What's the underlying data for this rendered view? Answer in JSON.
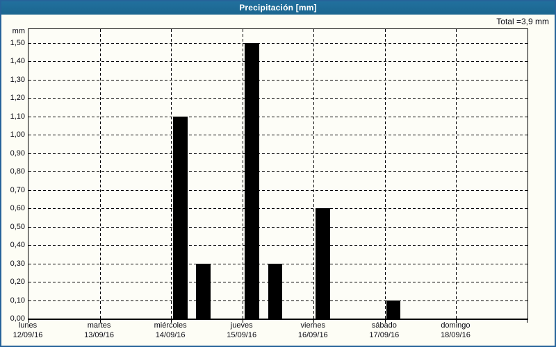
{
  "window": {
    "title": "Precipitación [mm]"
  },
  "header": {
    "total_text": "Total =3,9 mm"
  },
  "colors": {
    "titlebar_bg": "#1d6b9e",
    "titlebar_text": "#ffffff",
    "panel_border": "#26639a",
    "background": "#fdfdf5",
    "bar": "#000000",
    "grid": "#000000",
    "axis": "#000000",
    "label_text": "#0a0a12"
  },
  "chart_data": {
    "type": "bar",
    "title": "Precipitación [mm]",
    "ylabel": "mm",
    "ylim": [
      0,
      1.5
    ],
    "ytick_step": 0.1,
    "ytick_labels": [
      "0,00",
      "0,10",
      "0,20",
      "0,30",
      "0,40",
      "0,50",
      "0,60",
      "0,70",
      "0,80",
      "0,90",
      "1,00",
      "1,10",
      "1,20",
      "1,30",
      "1,40",
      "1,50"
    ],
    "grid": "dashed-black; horizontal every 0,10 mm; vertical at each day boundary",
    "legend": "none",
    "days": [
      {
        "name": "lunes",
        "date": "12/09/16"
      },
      {
        "name": "martes",
        "date": "13/09/16"
      },
      {
        "name": "miércoles",
        "date": "14/09/16"
      },
      {
        "name": "jueves",
        "date": "15/09/16"
      },
      {
        "name": "viernes",
        "date": "16/09/16"
      },
      {
        "name": "sábado",
        "date": "17/09/16"
      },
      {
        "name": "domingo",
        "date": "18/09/16"
      }
    ],
    "bars": [
      {
        "day": "miércoles",
        "date": "14/09/16",
        "value": 1.1,
        "day_index": 2,
        "time_offset_frac": 0.03,
        "width_frac": 0.2
      },
      {
        "day": "miércoles",
        "date": "14/09/16",
        "value": 0.3,
        "day_index": 2,
        "time_offset_frac": 0.35,
        "width_frac": 0.2
      },
      {
        "day": "jueves",
        "date": "15/09/16",
        "value": 1.5,
        "day_index": 3,
        "time_offset_frac": 0.035,
        "width_frac": 0.2
      },
      {
        "day": "jueves",
        "date": "15/09/16",
        "value": 0.3,
        "day_index": 3,
        "time_offset_frac": 0.36,
        "width_frac": 0.2
      },
      {
        "day": "viernes",
        "date": "16/09/16",
        "value": 0.6,
        "day_index": 4,
        "time_offset_frac": 0.03,
        "width_frac": 0.2
      },
      {
        "day": "sábado",
        "date": "17/09/16",
        "value": 0.1,
        "day_index": 5,
        "time_offset_frac": 0.02,
        "width_frac": 0.2
      }
    ],
    "total_mm": 3.9,
    "total_text": "Total =3,9 mm"
  }
}
